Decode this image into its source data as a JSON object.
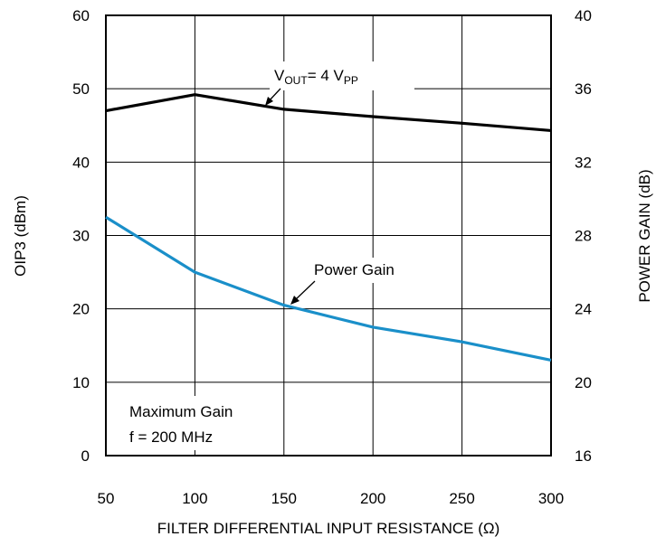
{
  "chart_data": {
    "type": "line",
    "xlabel": "FILTER DIFFERENTIAL INPUT RESISTANCE (Ω)",
    "ylabel_left": "OIP3 (dBm)",
    "ylabel_right": "POWER GAIN (dB)",
    "xlim": [
      50,
      300
    ],
    "ylim_left": [
      0,
      60
    ],
    "ylim_right": [
      16,
      40
    ],
    "x_ticks": [
      "50",
      "100",
      "150",
      "200",
      "250",
      "300"
    ],
    "y_ticks_left": [
      "0",
      "10",
      "20",
      "30",
      "40",
      "50",
      "60"
    ],
    "y_ticks_right": [
      "16",
      "20",
      "24",
      "28",
      "32",
      "36",
      "40"
    ],
    "grid": true,
    "series": [
      {
        "axis": "left",
        "color": "#000000",
        "x": [
          50,
          100,
          150,
          200,
          250,
          300
        ],
        "y": [
          47,
          49.2,
          47.2,
          46.2,
          45.3,
          44.3
        ]
      },
      {
        "axis": "right",
        "color": "#1a8fc9",
        "x": [
          50,
          100,
          150,
          200,
          250,
          300
        ],
        "y": [
          29,
          26,
          24.2,
          23,
          22.2,
          21.2
        ]
      }
    ],
    "annotations": {
      "vout": {
        "main": "V",
        "sub1": "OUT",
        "mid": "= 4 V",
        "sub2": "PP"
      },
      "power_gain": "Power Gain",
      "conditions": [
        "Maximum Gain",
        "f = 200 MHz"
      ]
    }
  }
}
